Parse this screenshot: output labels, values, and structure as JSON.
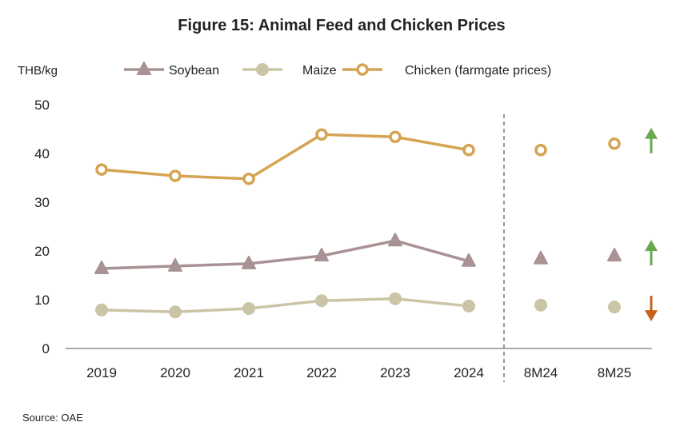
{
  "chart_data": {
    "type": "line",
    "title": "Figure 15: Animal Feed and Chicken Prices",
    "ylabel": "THB/kg",
    "xlabel": "",
    "source": "Source: OAE",
    "ylim": [
      0,
      50
    ],
    "yticks": [
      0,
      10,
      20,
      30,
      40,
      50
    ],
    "grid": false,
    "legend_position": "top",
    "categories": [
      "2019",
      "2020",
      "2021",
      "2022",
      "2023",
      "2024",
      "8M24",
      "8M25"
    ],
    "connected_categories": 6,
    "series": [
      {
        "name": "Soybean",
        "marker": "triangle",
        "color": "#a89294",
        "values": [
          16.4,
          16.9,
          17.4,
          19.0,
          22.1,
          17.9,
          18.4,
          19.0
        ],
        "trend": "up",
        "trend_color": "#6aa84f"
      },
      {
        "name": "Maize",
        "marker": "circle",
        "color": "#c9c5a6",
        "values": [
          7.9,
          7.5,
          8.2,
          9.8,
          10.2,
          8.7,
          8.9,
          8.5
        ],
        "trend": "down",
        "trend_color": "#c8601c"
      },
      {
        "name": "Chicken (farmgate prices)",
        "marker": "ring",
        "color": "#d4a452",
        "values": [
          36.7,
          35.4,
          34.8,
          43.9,
          43.4,
          40.7,
          40.7,
          42.0
        ],
        "trend": "up",
        "trend_color": "#6aa84f"
      }
    ]
  }
}
